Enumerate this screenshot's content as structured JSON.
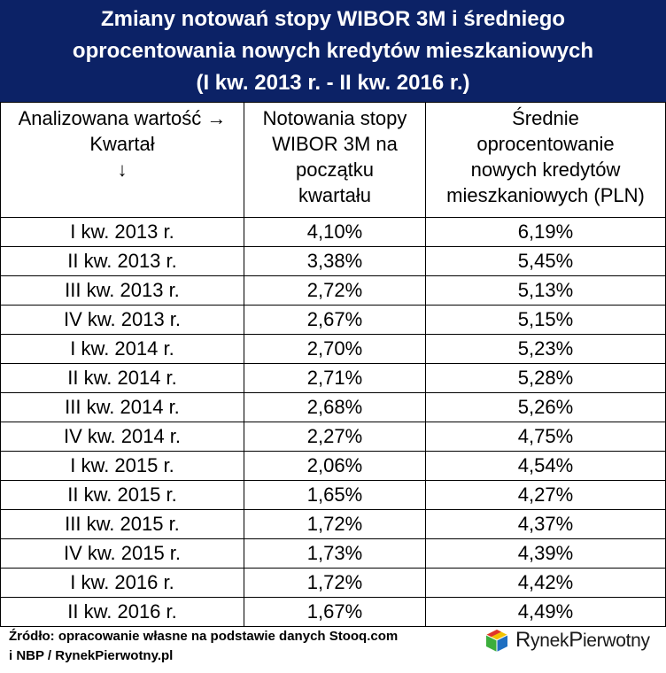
{
  "title_lines": [
    "Zmiany notowań stopy WIBOR 3M i średniego",
    "oprocentowania nowych kredytów mieszkaniowych",
    "(I kw. 2013 r. - II kw. 2016 r.)"
  ],
  "header": {
    "col1": [
      "Analizowana wartość →",
      "Kwartał",
      "↓"
    ],
    "col2": [
      "Notowania stopy",
      "WIBOR 3M na",
      "początku",
      "kwartału"
    ],
    "col3": [
      "Średnie",
      "oprocentowanie",
      "nowych kredytów",
      "mieszkaniowych (PLN)"
    ]
  },
  "colors": {
    "title_bg": "#0c2266",
    "max_value": "#c00000",
    "min_value": "#1aa33c"
  },
  "chart_data": {
    "type": "table",
    "columns": [
      "Analizowana wartość → Kwartał ↓",
      "Notowania stopy WIBOR 3M na początku kwartału",
      "Średnie oprocentowanie nowych kredytów mieszkaniowych (PLN)"
    ],
    "rows": [
      {
        "quarter": "I kw. 2013 r.",
        "wibor": "4,10%",
        "rate": "6,19%",
        "highlight": "max"
      },
      {
        "quarter": "II kw. 2013 r.",
        "wibor": "3,38%",
        "rate": "5,45%",
        "highlight": ""
      },
      {
        "quarter": "III kw. 2013 r.",
        "wibor": "2,72%",
        "rate": "5,13%",
        "highlight": ""
      },
      {
        "quarter": "IV kw. 2013 r.",
        "wibor": "2,67%",
        "rate": "5,15%",
        "highlight": ""
      },
      {
        "quarter": "I kw. 2014 r.",
        "wibor": "2,70%",
        "rate": "5,23%",
        "highlight": ""
      },
      {
        "quarter": "II kw. 2014 r.",
        "wibor": "2,71%",
        "rate": "5,28%",
        "highlight": ""
      },
      {
        "quarter": "III kw. 2014 r.",
        "wibor": "2,68%",
        "rate": "5,26%",
        "highlight": ""
      },
      {
        "quarter": "IV kw. 2014 r.",
        "wibor": "2,27%",
        "rate": "4,75%",
        "highlight": ""
      },
      {
        "quarter": "I kw. 2015 r.",
        "wibor": "2,06%",
        "rate": "4,54%",
        "highlight": ""
      },
      {
        "quarter": "II kw. 2015 r.",
        "wibor": "1,65%",
        "rate": "4,27%",
        "highlight": "min"
      },
      {
        "quarter": "III kw. 2015 r.",
        "wibor": "1,72%",
        "rate": "4,37%",
        "highlight": ""
      },
      {
        "quarter": "IV kw. 2015 r.",
        "wibor": "1,73%",
        "rate": "4,39%",
        "highlight": ""
      },
      {
        "quarter": "I kw. 2016 r.",
        "wibor": "1,72%",
        "rate": "4,42%",
        "highlight": ""
      },
      {
        "quarter": "II kw. 2016 r.",
        "wibor": "1,67%",
        "rate": "4,49%",
        "highlight": ""
      }
    ]
  },
  "footer": {
    "source_line1": "Źródło: opracowanie własne na podstawie danych Stooq.com",
    "source_line2": "i NBP / RynekPierwotny.pl"
  },
  "logo": {
    "icon": "cube-logo-icon",
    "part1": "R",
    "part2": "ynek",
    "part3": "P",
    "part4": "ierwotny"
  }
}
